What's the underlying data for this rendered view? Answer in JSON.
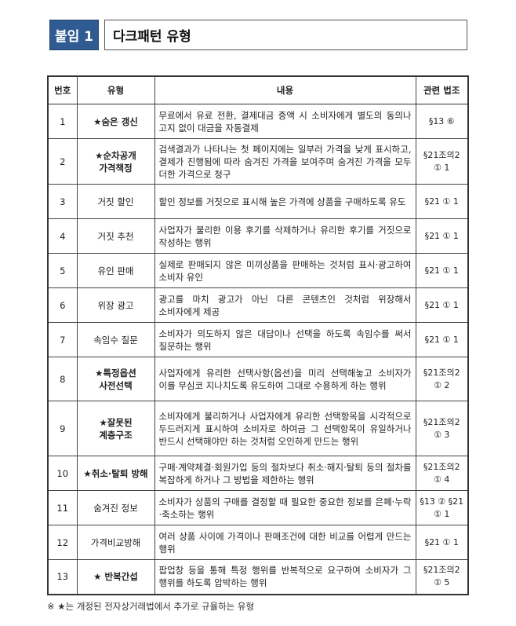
{
  "header": {
    "badge": "붙임 1",
    "title": "다크패턴 유형"
  },
  "table": {
    "columns": [
      "번호",
      "유형",
      "내용",
      "관련 법조"
    ],
    "rows": [
      {
        "no": "1",
        "type": "★숨은 갱신",
        "starred": true,
        "desc": "무료에서 유료 전환, 결제대금 증액 시 소비자에게 별도의 동의나 고지 없이 대금을 자동결제",
        "law": "§13 ⑥"
      },
      {
        "no": "2",
        "type": "★순차공개 가격책정",
        "starred": true,
        "desc": "검색결과가 나타나는 첫 페이지에는 일부러 가격을 낮게 표시하고, 결제가 진행됨에 따라 숨겨진 가격을 보여주며 숨겨진 가격을 모두 더한 가격으로 청구",
        "law": "§21조의2 ① 1"
      },
      {
        "no": "3",
        "type": "거짓 할인",
        "starred": false,
        "desc": "할인 정보를 거짓으로 표시해 높은 가격에 상품을 구매하도록 유도",
        "law": "§21 ① 1"
      },
      {
        "no": "4",
        "type": "거짓 추천",
        "starred": false,
        "desc": "사업자가 불리한 이용 후기를 삭제하거나 유리한 후기를 거짓으로 작성하는 행위",
        "law": "§21 ① 1"
      },
      {
        "no": "5",
        "type": "유인 판매",
        "starred": false,
        "desc": "실제로 판매되지 않은 미끼상품을 판매하는 것처럼 표시·광고하여 소비자 유인",
        "law": "§21 ① 1"
      },
      {
        "no": "6",
        "type": "위장 광고",
        "starred": false,
        "desc": "광고를 마치 광고가 아닌 다른 콘텐츠인 것처럼 위장해서 소비자에게 제공",
        "law": "§21 ① 1"
      },
      {
        "no": "7",
        "type": "속임수 질문",
        "starred": false,
        "desc": "소비자가 의도하지 않은 대답이나 선택을 하도록 속임수를 써서 질문하는 행위",
        "law": "§21 ① 1"
      },
      {
        "no": "8",
        "type": "★특정옵션 사전선택",
        "starred": true,
        "desc": "사업자에게 유리한 선택사항(옵션)을 미리 선택해놓고 소비자가 이를 무심코 지나치도록 유도하여 그대로 수용하게 하는 행위",
        "law": "§21조의2 ① 2"
      },
      {
        "no": "9",
        "type": "★잘못된 계층구조",
        "starred": true,
        "desc": "소비자에게 불리하거나 사업자에게 유리한 선택항목을 시각적으로 두드러지게 표시하여 소비자로 하여금 그 선택항목이 유일하거나 반드시 선택해야만 하는 것처럼 오인하게 만드는 행위",
        "law": "§21조의2 ① 3"
      },
      {
        "no": "10",
        "type": "★취소·탈퇴 방해",
        "starred": true,
        "desc": "구매·계약체결·회원가입 등의 절차보다 취소·해지·탈퇴 등의 절차를 복잡하게 하거나 그 방법을 제한하는 행위",
        "law": "§21조의2 ① 4"
      },
      {
        "no": "11",
        "type": "숨겨진 정보",
        "starred": false,
        "desc": "소비자가 상품의 구매를 결정할 때 필요한 중요한 정보를 은폐·누락·축소하는 행위",
        "law": "§13 ② §21 ① 1"
      },
      {
        "no": "12",
        "type": "가격비교방해",
        "starred": false,
        "desc": "여러 상품 사이에 가격이나 판매조건에 대한 비교를 어렵게 만드는 행위",
        "law": "§21 ① 1"
      },
      {
        "no": "13",
        "type": "★ 반복간섭",
        "starred": true,
        "desc": "팝업창 등을 통해 특정 행위를 반복적으로 요구하여 소비자가 그 행위를 하도록 압박하는 행위",
        "law": "§21조의2 ① 5"
      }
    ]
  },
  "footnote": "※ ★는 개정된 전자상거래법에서 추가로 규율하는 유형",
  "colors": {
    "badge": "#2f5a92"
  }
}
